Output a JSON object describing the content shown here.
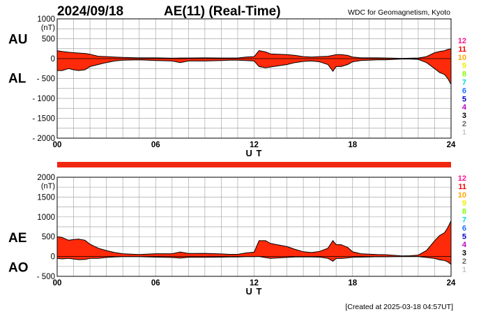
{
  "header": {
    "date": "2024/09/18",
    "title": "AE(11) (Real-Time)",
    "source": "WDC for Geomagnetism, Kyoto"
  },
  "footer": {
    "created": "[Created at 2025-03-18 04:57UT]"
  },
  "colors": {
    "fill": "#ff2a0a",
    "outline": "#000000",
    "grid": "#a8a8a8",
    "bar": "#f02810"
  },
  "legend": {
    "items": [
      {
        "label": "12",
        "color": "#ff1493"
      },
      {
        "label": "11",
        "color": "#ff0000"
      },
      {
        "label": "10",
        "color": "#ffa500"
      },
      {
        "label": "9",
        "color": "#eeee00"
      },
      {
        "label": "8",
        "color": "#7fff00"
      },
      {
        "label": "7",
        "color": "#00d8d8"
      },
      {
        "label": "6",
        "color": "#1e6fff"
      },
      {
        "label": "5",
        "color": "#0000cd"
      },
      {
        "label": "4",
        "color": "#c000c0"
      },
      {
        "label": "3",
        "color": "#000000"
      },
      {
        "label": "2",
        "color": "#666666"
      },
      {
        "label": "1",
        "color": "#c8c8c8"
      }
    ]
  },
  "chart_data": [
    {
      "type": "area",
      "unit": "(nT)",
      "labels_upper": "AU",
      "labels_lower": "AL",
      "xlabel": "U T",
      "xlim": [
        0,
        24
      ],
      "ylim": [
        -2000,
        1000
      ],
      "x_ticks": [
        "00",
        "06",
        "12",
        "18",
        "24"
      ],
      "y_ticks": [
        "1000",
        "500",
        "0",
        "- 500",
        "- 1000",
        "- 1500",
        "- 2000"
      ],
      "y_tick_values": [
        1000,
        500,
        0,
        -500,
        -1000,
        -1500,
        -2000
      ],
      "grid": true,
      "x": [
        0,
        0.3,
        0.7,
        1.0,
        1.3,
        1.7,
        2.0,
        2.5,
        3.0,
        3.5,
        4.0,
        4.5,
        5.0,
        6.0,
        7.0,
        7.5,
        8.0,
        9.0,
        10.0,
        10.5,
        11.0,
        11.5,
        12.0,
        12.3,
        12.7,
        13.0,
        13.5,
        14.0,
        14.5,
        15.0,
        15.5,
        16.0,
        16.5,
        16.8,
        17.0,
        17.3,
        17.7,
        18.0,
        18.5,
        19.0,
        19.5,
        20.0,
        20.5,
        21.0,
        21.5,
        22.0,
        22.5,
        23.0,
        23.3,
        23.6,
        23.8,
        24.0
      ],
      "series": [
        {
          "label": "AU",
          "values": [
            200,
            180,
            160,
            150,
            140,
            130,
            110,
            60,
            50,
            40,
            30,
            25,
            20,
            20,
            10,
            15,
            15,
            20,
            15,
            15,
            15,
            40,
            50,
            200,
            170,
            120,
            110,
            100,
            80,
            50,
            40,
            50,
            60,
            80,
            100,
            100,
            80,
            40,
            20,
            20,
            20,
            15,
            10,
            5,
            10,
            15,
            50,
            150,
            180,
            200,
            230,
            250
          ]
        },
        {
          "label": "AL",
          "values": [
            -300,
            -300,
            -250,
            -280,
            -300,
            -280,
            -200,
            -150,
            -100,
            -60,
            -40,
            -35,
            -30,
            -50,
            -60,
            -100,
            -60,
            -60,
            -50,
            -40,
            -40,
            -50,
            -60,
            -200,
            -230,
            -210,
            -180,
            -150,
            -100,
            -70,
            -60,
            -80,
            -150,
            -320,
            -200,
            -200,
            -150,
            -80,
            -50,
            -40,
            -30,
            -30,
            -20,
            -10,
            -10,
            -20,
            -100,
            -250,
            -350,
            -400,
            -500,
            -650
          ]
        }
      ]
    },
    {
      "type": "area",
      "unit": "(nT)",
      "labels_upper": "AE",
      "labels_lower": "AO",
      "xlabel": "U T",
      "xlim": [
        0,
        24
      ],
      "ylim": [
        -500,
        2000
      ],
      "x_ticks": [
        "00",
        "06",
        "12",
        "18",
        "24"
      ],
      "y_ticks": [
        "2000",
        "1500",
        "1000",
        "500",
        "0",
        "- 500"
      ],
      "y_tick_values": [
        2000,
        1500,
        1000,
        500,
        0,
        -500
      ],
      "grid": true,
      "x": [
        0,
        0.3,
        0.7,
        1.0,
        1.3,
        1.7,
        2.0,
        2.5,
        3.0,
        3.5,
        4.0,
        4.5,
        5.0,
        6.0,
        7.0,
        7.5,
        8.0,
        9.0,
        10.0,
        10.5,
        11.0,
        11.5,
        12.0,
        12.3,
        12.7,
        13.0,
        13.5,
        14.0,
        14.5,
        15.0,
        15.5,
        16.0,
        16.5,
        16.8,
        17.0,
        17.3,
        17.7,
        18.0,
        18.5,
        19.0,
        19.5,
        20.0,
        20.5,
        21.0,
        21.5,
        22.0,
        22.5,
        23.0,
        23.3,
        23.6,
        23.8,
        24.0
      ],
      "series": [
        {
          "label": "AE",
          "values": [
            500,
            480,
            410,
            430,
            440,
            410,
            310,
            210,
            150,
            100,
            70,
            60,
            50,
            70,
            70,
            115,
            75,
            80,
            65,
            55,
            55,
            90,
            110,
            400,
            400,
            330,
            290,
            250,
            180,
            120,
            100,
            130,
            210,
            400,
            300,
            300,
            230,
            120,
            70,
            60,
            50,
            45,
            30,
            15,
            20,
            35,
            150,
            400,
            530,
            600,
            730,
            900
          ]
        },
        {
          "label": "AO",
          "values": [
            -50,
            -60,
            -45,
            -65,
            -80,
            -75,
            -45,
            -45,
            -25,
            -10,
            -5,
            -5,
            -5,
            -15,
            -25,
            -40,
            -20,
            -20,
            -15,
            -10,
            -10,
            -5,
            -5,
            0,
            -30,
            -45,
            -35,
            -25,
            -10,
            -10,
            -10,
            -15,
            -45,
            -120,
            -50,
            -50,
            -35,
            -20,
            -15,
            -10,
            -5,
            -7,
            -5,
            -3,
            0,
            -3,
            -25,
            -50,
            -85,
            -100,
            -135,
            -200
          ]
        }
      ]
    }
  ]
}
